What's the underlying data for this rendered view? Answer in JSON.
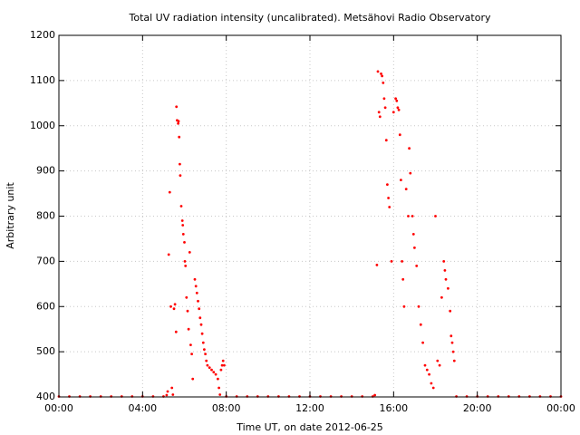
{
  "chart_data": {
    "type": "scatter",
    "title": "Total UV radiation intensity (uncalibrated). Metsähovi Radio Observatory",
    "xlabel": "Time UT, on date 2012-06-25",
    "ylabel": "Arbitrary unit",
    "xlim": [
      0,
      24
    ],
    "ylim": [
      400,
      1200
    ],
    "xticks": [
      0,
      4,
      8,
      12,
      16,
      20,
      24
    ],
    "xtick_labels": [
      "00:00",
      "04:00",
      "08:00",
      "12:00",
      "16:00",
      "20:00",
      "00:00"
    ],
    "yticks": [
      400,
      500,
      600,
      700,
      800,
      900,
      1000,
      1100,
      1200
    ],
    "ytick_labels": [
      "400",
      "500",
      "600",
      "700",
      "800",
      "900",
      "1000",
      "1100",
      "1200"
    ],
    "grid": true,
    "marker_color": "#ff0000",
    "series": [
      {
        "name": "",
        "points": [
          [
            0.0,
            401
          ],
          [
            0.5,
            401
          ],
          [
            1.0,
            401
          ],
          [
            1.5,
            401
          ],
          [
            2.0,
            401
          ],
          [
            2.5,
            401
          ],
          [
            3.0,
            401
          ],
          [
            3.5,
            401
          ],
          [
            4.0,
            401
          ],
          [
            4.5,
            401
          ],
          [
            5.0,
            401
          ],
          [
            5.15,
            404
          ],
          [
            5.2,
            412
          ],
          [
            5.25,
            715
          ],
          [
            5.3,
            853
          ],
          [
            5.35,
            600
          ],
          [
            5.4,
            420
          ],
          [
            5.45,
            405
          ],
          [
            5.5,
            595
          ],
          [
            5.55,
            605
          ],
          [
            5.6,
            544
          ],
          [
            5.62,
            1042
          ],
          [
            5.65,
            1012
          ],
          [
            5.7,
            1005
          ],
          [
            5.72,
            1010
          ],
          [
            5.75,
            975
          ],
          [
            5.78,
            915
          ],
          [
            5.8,
            890
          ],
          [
            5.85,
            822
          ],
          [
            5.9,
            790
          ],
          [
            5.92,
            780
          ],
          [
            5.95,
            760
          ],
          [
            6.0,
            742
          ],
          [
            6.02,
            700
          ],
          [
            6.05,
            690
          ],
          [
            6.1,
            620
          ],
          [
            6.15,
            590
          ],
          [
            6.2,
            550
          ],
          [
            6.25,
            720
          ],
          [
            6.3,
            515
          ],
          [
            6.35,
            495
          ],
          [
            6.4,
            440
          ],
          [
            6.5,
            660
          ],
          [
            6.55,
            645
          ],
          [
            6.6,
            630
          ],
          [
            6.65,
            612
          ],
          [
            6.7,
            595
          ],
          [
            6.75,
            575
          ],
          [
            6.8,
            560
          ],
          [
            6.85,
            540
          ],
          [
            6.9,
            520
          ],
          [
            6.95,
            505
          ],
          [
            7.0,
            495
          ],
          [
            7.05,
            480
          ],
          [
            7.1,
            470
          ],
          [
            7.2,
            465
          ],
          [
            7.3,
            460
          ],
          [
            7.4,
            455
          ],
          [
            7.5,
            450
          ],
          [
            7.6,
            440
          ],
          [
            7.65,
            420
          ],
          [
            7.7,
            405
          ],
          [
            7.75,
            460
          ],
          [
            7.8,
            470
          ],
          [
            7.85,
            480
          ],
          [
            7.9,
            470
          ],
          [
            8.0,
            401
          ],
          [
            8.5,
            401
          ],
          [
            9.0,
            401
          ],
          [
            9.5,
            401
          ],
          [
            10.0,
            401
          ],
          [
            10.5,
            401
          ],
          [
            11.0,
            401
          ],
          [
            11.5,
            401
          ],
          [
            12.0,
            401
          ],
          [
            12.5,
            401
          ],
          [
            13.0,
            401
          ],
          [
            13.5,
            401
          ],
          [
            14.0,
            401
          ],
          [
            14.5,
            401
          ],
          [
            15.0,
            401
          ],
          [
            15.1,
            404
          ],
          [
            15.2,
            692
          ],
          [
            15.25,
            1120
          ],
          [
            15.3,
            1030
          ],
          [
            15.35,
            1020
          ],
          [
            15.4,
            1115
          ],
          [
            15.45,
            1110
          ],
          [
            15.5,
            1095
          ],
          [
            15.55,
            1060
          ],
          [
            15.6,
            1040
          ],
          [
            15.65,
            968
          ],
          [
            15.7,
            870
          ],
          [
            15.75,
            840
          ],
          [
            15.8,
            820
          ],
          [
            15.9,
            700
          ],
          [
            16.0,
            1030
          ],
          [
            16.1,
            1060
          ],
          [
            16.15,
            1055
          ],
          [
            16.2,
            1040
          ],
          [
            16.25,
            1035
          ],
          [
            16.3,
            980
          ],
          [
            16.35,
            880
          ],
          [
            16.4,
            700
          ],
          [
            16.45,
            660
          ],
          [
            16.5,
            600
          ],
          [
            16.6,
            860
          ],
          [
            16.7,
            800
          ],
          [
            16.75,
            950
          ],
          [
            16.8,
            895
          ],
          [
            16.9,
            800
          ],
          [
            16.95,
            760
          ],
          [
            17.0,
            730
          ],
          [
            17.1,
            690
          ],
          [
            17.2,
            600
          ],
          [
            17.3,
            560
          ],
          [
            17.4,
            520
          ],
          [
            17.5,
            470
          ],
          [
            17.6,
            460
          ],
          [
            17.7,
            450
          ],
          [
            17.8,
            430
          ],
          [
            17.9,
            420
          ],
          [
            18.0,
            800
          ],
          [
            18.1,
            480
          ],
          [
            18.2,
            470
          ],
          [
            18.3,
            620
          ],
          [
            18.4,
            700
          ],
          [
            18.45,
            680
          ],
          [
            18.5,
            660
          ],
          [
            18.6,
            640
          ],
          [
            18.7,
            590
          ],
          [
            18.75,
            535
          ],
          [
            18.8,
            520
          ],
          [
            18.85,
            500
          ],
          [
            18.9,
            480
          ],
          [
            19.0,
            401
          ],
          [
            19.5,
            401
          ],
          [
            20.0,
            401
          ],
          [
            20.5,
            401
          ],
          [
            21.0,
            401
          ],
          [
            21.5,
            401
          ],
          [
            22.0,
            401
          ],
          [
            22.5,
            401
          ],
          [
            23.0,
            401
          ],
          [
            23.5,
            401
          ],
          [
            24.0,
            401
          ]
        ]
      }
    ]
  }
}
